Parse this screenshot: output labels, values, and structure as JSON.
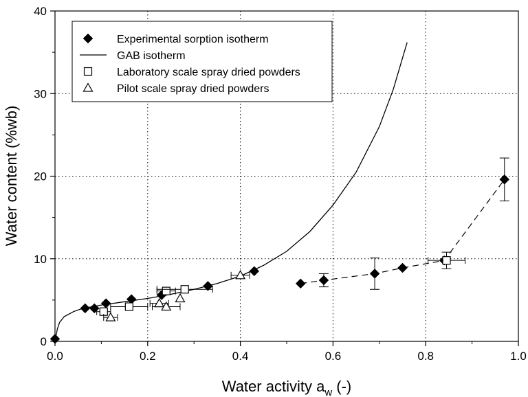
{
  "chart_data": {
    "type": "scatter",
    "xlabel": "Water activity a",
    "xlabel_sub": "w",
    "xlabel_suffix": " (-)",
    "ylabel": "Water content (%wb)",
    "xlim": [
      0.0,
      1.0
    ],
    "ylim": [
      0,
      40
    ],
    "xticks": [
      "0.0",
      "0.2",
      "0.4",
      "0.6",
      "0.8",
      "1.0"
    ],
    "xtick_values": [
      0.0,
      0.2,
      0.4,
      0.6,
      0.8,
      1.0
    ],
    "yticks": [
      "0",
      "10",
      "20",
      "30",
      "40"
    ],
    "ytick_values": [
      0,
      10,
      20,
      30,
      40
    ],
    "grid": "dotted",
    "legend_position": "top-left",
    "legend": [
      {
        "label": "Experimental sorption isotherm",
        "marker": "diamond"
      },
      {
        "label": "GAB isotherm",
        "marker": "line"
      },
      {
        "label": "Laboratory scale spray dried powders",
        "marker": "square"
      },
      {
        "label": "Pilot scale spray dried powders",
        "marker": "triangle"
      }
    ],
    "series": [
      {
        "marker": "diamond",
        "points": [
          {
            "x": 0.0,
            "y": 0.3
          },
          {
            "x": 0.065,
            "y": 4.0
          },
          {
            "x": 0.085,
            "y": 4.0
          },
          {
            "x": 0.11,
            "y": 4.6
          },
          {
            "x": 0.165,
            "y": 5.1
          },
          {
            "x": 0.23,
            "y": 5.6
          },
          {
            "x": 0.33,
            "y": 6.7
          },
          {
            "x": 0.43,
            "y": 8.5
          },
          {
            "x": 0.53,
            "y": 7.0
          },
          {
            "x": 0.58,
            "y": 7.4,
            "yerr": 0.8
          },
          {
            "x": 0.69,
            "y": 8.2,
            "yerr": 1.9
          },
          {
            "x": 0.75,
            "y": 8.9
          },
          {
            "x": 0.84,
            "y": 9.8
          },
          {
            "x": 0.97,
            "y": 19.6,
            "yerr": 2.6
          }
        ]
      },
      {
        "marker": "line",
        "points": [
          {
            "x": 0.0,
            "y": 0.0
          },
          {
            "x": 0.005,
            "y": 1.5
          },
          {
            "x": 0.01,
            "y": 2.3
          },
          {
            "x": 0.02,
            "y": 3.0
          },
          {
            "x": 0.04,
            "y": 3.6
          },
          {
            "x": 0.06,
            "y": 4.0
          },
          {
            "x": 0.1,
            "y": 4.4
          },
          {
            "x": 0.15,
            "y": 4.8
          },
          {
            "x": 0.2,
            "y": 5.2
          },
          {
            "x": 0.25,
            "y": 5.7
          },
          {
            "x": 0.3,
            "y": 6.3
          },
          {
            "x": 0.35,
            "y": 7.0
          },
          {
            "x": 0.4,
            "y": 7.9
          },
          {
            "x": 0.45,
            "y": 9.2
          },
          {
            "x": 0.5,
            "y": 10.9
          },
          {
            "x": 0.55,
            "y": 13.3
          },
          {
            "x": 0.6,
            "y": 16.5
          },
          {
            "x": 0.65,
            "y": 20.5
          },
          {
            "x": 0.7,
            "y": 26.0
          },
          {
            "x": 0.73,
            "y": 30.5
          },
          {
            "x": 0.76,
            "y": 36.2
          }
        ]
      },
      {
        "marker": "square",
        "points": [
          {
            "x": 0.105,
            "y": 3.6,
            "xerr": 0.015
          },
          {
            "x": 0.16,
            "y": 4.2,
            "xerr": 0.04
          },
          {
            "x": 0.24,
            "y": 6.1,
            "xerr": 0.02
          },
          {
            "x": 0.28,
            "y": 6.3,
            "xerr": 0.06
          },
          {
            "x": 0.845,
            "y": 9.8,
            "xerr": 0.04,
            "yerr": 1.0
          }
        ]
      },
      {
        "marker": "triangle",
        "points": [
          {
            "x": 0.12,
            "y": 2.9,
            "xerr": 0.015
          },
          {
            "x": 0.225,
            "y": 4.6,
            "xerr": 0.02
          },
          {
            "x": 0.24,
            "y": 4.2,
            "xerr": 0.03
          },
          {
            "x": 0.27,
            "y": 5.2
          },
          {
            "x": 0.4,
            "y": 8.0,
            "xerr": 0.02
          }
        ]
      }
    ],
    "dashed_connector": [
      {
        "x": 0.53,
        "y": 7.0
      },
      {
        "x": 0.58,
        "y": 7.4
      },
      {
        "x": 0.69,
        "y": 8.2
      },
      {
        "x": 0.75,
        "y": 8.9
      },
      {
        "x": 0.84,
        "y": 9.8
      },
      {
        "x": 0.97,
        "y": 19.6
      }
    ]
  }
}
